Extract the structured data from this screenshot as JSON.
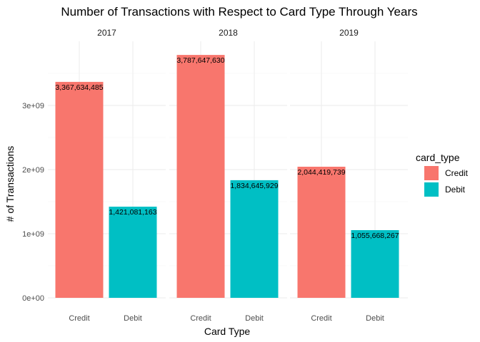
{
  "chart_data": {
    "type": "bar",
    "title": "Number of Transactions with Respect to Card Type Through Years",
    "xlabel": "Card Type",
    "ylabel": "# of Transactions",
    "facets": [
      "2017",
      "2018",
      "2019"
    ],
    "categories": [
      "Credit",
      "Debit"
    ],
    "values": {
      "2017": [
        3367634485,
        1421081163
      ],
      "2018": [
        3787647630,
        1834645929
      ],
      "2019": [
        2044419739,
        1055668267
      ]
    },
    "value_labels": {
      "2017": [
        "3,367,634,485",
        "1,421,081,163"
      ],
      "2018": [
        "3,787,647,630",
        "1,834,645,929"
      ],
      "2019": [
        "2,044,419,739",
        "1,055,668,267"
      ]
    },
    "y_ticks": [
      0,
      1000000000,
      2000000000,
      3000000000
    ],
    "y_tick_labels": [
      "0e+00",
      "1e+09",
      "2e+09",
      "3e+09"
    ],
    "ylim": [
      0,
      4000000000
    ],
    "grid": true,
    "legend": {
      "title": "card_type",
      "position": "right",
      "entries": [
        {
          "name": "Credit",
          "color": "#F8766D"
        },
        {
          "name": "Debit",
          "color": "#00BFC4"
        }
      ]
    }
  }
}
